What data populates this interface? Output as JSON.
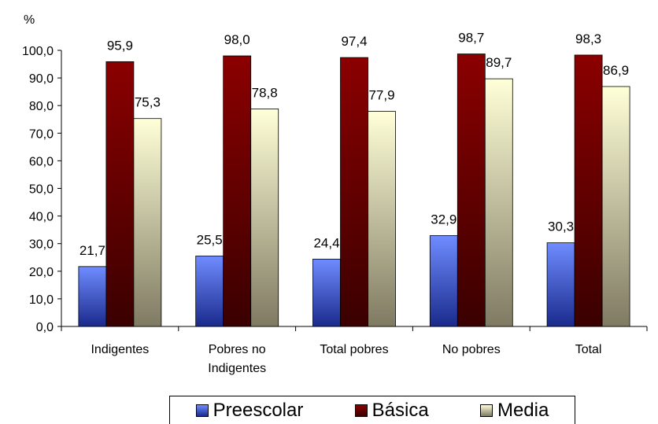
{
  "chart_data": {
    "type": "bar",
    "ylabel": "%",
    "ylim": [
      0,
      100
    ],
    "ytick_step": 10,
    "yticks": [
      "0,0",
      "10,0",
      "20,0",
      "30,0",
      "40,0",
      "50,0",
      "60,0",
      "70,0",
      "80,0",
      "90,0",
      "100,0"
    ],
    "categories": [
      [
        "Indigentes"
      ],
      [
        "Pobres no",
        "Indigentes"
      ],
      [
        "Total pobres"
      ],
      [
        "No pobres"
      ],
      [
        "Total"
      ]
    ],
    "series": [
      {
        "name": "Preescolar",
        "values": [
          21.7,
          25.5,
          24.4,
          32.9,
          30.3
        ],
        "labels": [
          "21,7",
          "25,5",
          "24,4",
          "32,9",
          "30,3"
        ],
        "color_top": "#6f8cff",
        "color_bottom": "#1a2a8c"
      },
      {
        "name": "Básica",
        "values": [
          95.9,
          98.0,
          97.4,
          98.7,
          98.3
        ],
        "labels": [
          "95,9",
          "98,0",
          "97,4",
          "98,7",
          "98,3"
        ],
        "color_top": "#8b0000",
        "color_bottom": "#3a0000"
      },
      {
        "name": "Media",
        "values": [
          75.3,
          78.8,
          77.9,
          89.7,
          86.9
        ],
        "labels": [
          "75,3",
          "78,8",
          "77,9",
          "89,7",
          "86,9"
        ],
        "color_top": "#ffffd8",
        "color_bottom": "#7f7a62"
      }
    ],
    "grid": false,
    "legend_position": "bottom"
  }
}
